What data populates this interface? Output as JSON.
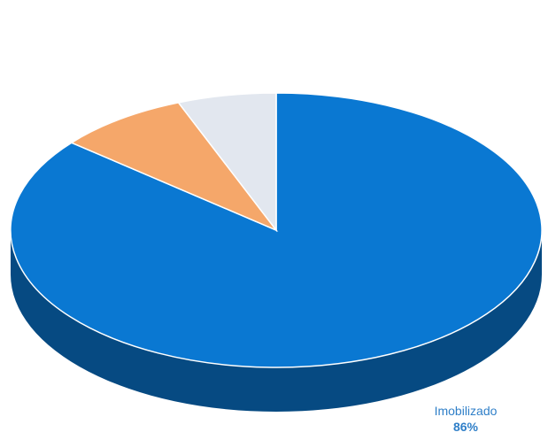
{
  "chart_data": {
    "type": "pie",
    "style": "3d",
    "slices": [
      {
        "label": "Imobilizado",
        "value": 86,
        "value_label": "86%",
        "color": "#0a78d2"
      },
      {
        "label": "",
        "value": 8,
        "value_label": "",
        "color": "#f5a76a"
      },
      {
        "label": "",
        "value": 6,
        "value_label": "",
        "color": "#e2e7ef"
      }
    ],
    "legend": "none"
  }
}
